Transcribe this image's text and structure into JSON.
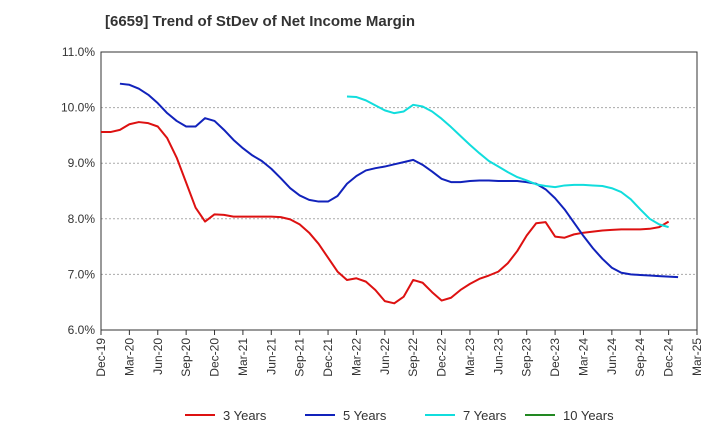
{
  "chart_data": {
    "type": "line",
    "title": "[6659]  Trend of StDev of Net Income Margin",
    "xlabel": "",
    "ylabel": "",
    "ylim": [
      6.0,
      11.0
    ],
    "y_ticks": [
      "6.0%",
      "7.0%",
      "8.0%",
      "9.0%",
      "10.0%",
      "11.0%"
    ],
    "y_tick_values": [
      6.0,
      7.0,
      8.0,
      9.0,
      10.0,
      11.0
    ],
    "x_ticks": [
      "Dec-19",
      "Mar-20",
      "Jun-20",
      "Sep-20",
      "Dec-20",
      "Mar-21",
      "Jun-21",
      "Sep-21",
      "Dec-21",
      "Mar-22",
      "Jun-22",
      "Sep-22",
      "Dec-22",
      "Mar-23",
      "Jun-23",
      "Sep-23",
      "Dec-23",
      "Mar-24",
      "Jun-24",
      "Sep-24",
      "Dec-24",
      "Mar-25"
    ],
    "grid": true,
    "legend_position": "bottom",
    "series": [
      {
        "name": "3 Years",
        "color": "#dd1111",
        "start_index": 0,
        "values": [
          9.56,
          9.56,
          9.6,
          9.7,
          9.74,
          9.72,
          9.66,
          9.45,
          9.1,
          8.65,
          8.2,
          7.95,
          8.08,
          8.07,
          8.04,
          8.04,
          8.04,
          8.04,
          8.04,
          8.03,
          7.99,
          7.9,
          7.75,
          7.55,
          7.3,
          7.05,
          6.9,
          6.93,
          6.87,
          6.72,
          6.52,
          6.48,
          6.6,
          6.9,
          6.85,
          6.68,
          6.53,
          6.58,
          6.72,
          6.83,
          6.92,
          6.98,
          7.05,
          7.2,
          7.42,
          7.7,
          7.92,
          7.94,
          7.68,
          7.66,
          7.72,
          7.75,
          7.77,
          7.79,
          7.8,
          7.81,
          7.81,
          7.81,
          7.82,
          7.85,
          7.95
        ]
      },
      {
        "name": "5 Years",
        "color": "#1122bb",
        "start_index": 2,
        "values": [
          10.43,
          10.41,
          10.34,
          10.23,
          10.08,
          9.9,
          9.76,
          9.66,
          9.66,
          9.81,
          9.76,
          9.6,
          9.42,
          9.27,
          9.14,
          9.04,
          8.9,
          8.73,
          8.55,
          8.42,
          8.34,
          8.31,
          8.31,
          8.41,
          8.63,
          8.77,
          8.87,
          8.91,
          8.94,
          8.98,
          9.02,
          9.06,
          8.97,
          8.85,
          8.72,
          8.66,
          8.66,
          8.68,
          8.69,
          8.69,
          8.68,
          8.68,
          8.68,
          8.66,
          8.63,
          8.53,
          8.37,
          8.17,
          7.93,
          7.69,
          7.47,
          7.28,
          7.12,
          7.03,
          7.0,
          6.99,
          6.98,
          6.97,
          6.96,
          6.95
        ]
      },
      {
        "name": "7 Years",
        "color": "#11dddd",
        "start_index": 26,
        "values": [
          10.2,
          10.19,
          10.13,
          10.04,
          9.95,
          9.9,
          9.93,
          10.05,
          10.02,
          9.93,
          9.8,
          9.65,
          9.49,
          9.33,
          9.18,
          9.04,
          8.94,
          8.84,
          8.75,
          8.69,
          8.62,
          8.59,
          8.57,
          8.6,
          8.61,
          8.61,
          8.6,
          8.59,
          8.55,
          8.48,
          8.35,
          8.17,
          8.0,
          7.9,
          7.85
        ]
      },
      {
        "name": "10 Years",
        "color": "#228822",
        "start_index": 0,
        "values": []
      }
    ]
  }
}
